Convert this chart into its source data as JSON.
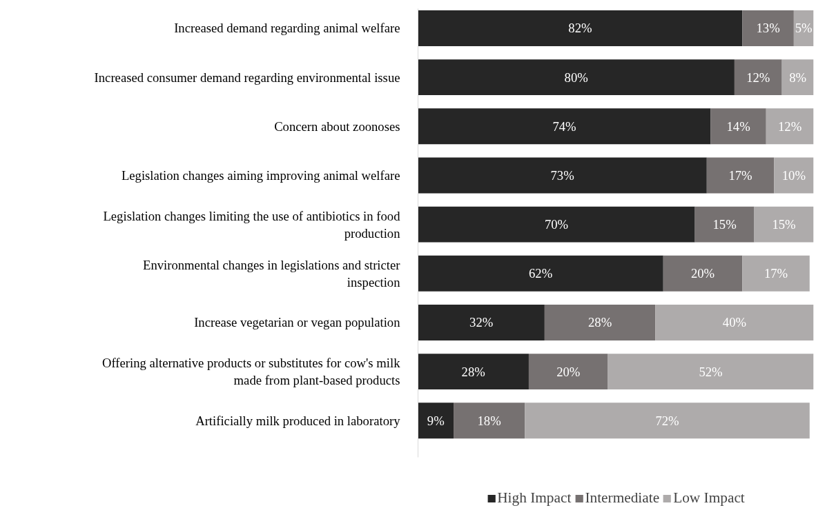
{
  "chart_data": {
    "type": "bar",
    "orientation": "horizontal",
    "stacked": true,
    "categories": [
      "Increased demand regarding animal welfare",
      "Increased consumer demand regarding environmental issue",
      "Concern about zoonoses",
      "Legislation changes aiming improving animal welfare",
      "Legislation changes limiting the use of antibiotics in food production",
      "Environmental changes in legislations and stricter inspection",
      "Increase vegetarian or vegan population",
      "Offering alternative products or substitutes for cow's milk made from plant-based products",
      "Artificially milk produced in laboratory"
    ],
    "series": [
      {
        "name": "High Impact",
        "color": "#262626",
        "values": [
          82,
          80,
          74,
          73,
          70,
          62,
          32,
          28,
          9
        ],
        "value_labels": [
          "82%",
          "80%",
          "74%",
          "73%",
          "70%",
          "62%",
          "32%",
          "28%",
          "9%"
        ]
      },
      {
        "name": "Intermediate",
        "color": "#767171",
        "values": [
          13,
          12,
          14,
          17,
          15,
          20,
          28,
          20,
          18
        ],
        "value_labels": [
          "13%",
          "12%",
          "14%",
          "17%",
          "15%",
          "20%",
          "28%",
          "20%",
          "18%"
        ]
      },
      {
        "name": "Low Impact",
        "color": "#aeabab",
        "values": [
          5,
          8,
          12,
          10,
          15,
          17,
          40,
          52,
          72
        ],
        "value_labels": [
          "5%",
          "8%",
          "12%",
          "10%",
          "15%",
          "17%",
          "40%",
          "52%",
          "72%"
        ]
      }
    ],
    "tick_labels": "y",
    "legend": "bottom"
  }
}
